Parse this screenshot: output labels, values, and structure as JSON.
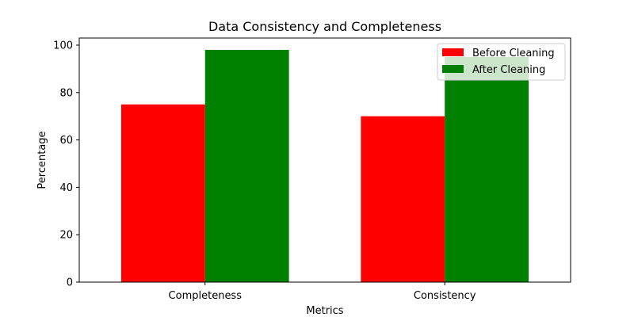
{
  "chart_data": {
    "type": "bar",
    "title": "Data Consistency and Completeness",
    "xlabel": "Metrics",
    "ylabel": "Percentage",
    "categories": [
      "Completeness",
      "Consistency"
    ],
    "series": [
      {
        "name": "Before Cleaning",
        "values": [
          75,
          70
        ],
        "color": "#ff0000"
      },
      {
        "name": "After Cleaning",
        "values": [
          98,
          95
        ],
        "color": "#008000"
      }
    ],
    "ylim": [
      0,
      103
    ],
    "yticks": [
      0,
      20,
      40,
      60,
      80,
      100
    ],
    "legend_position": "top-right",
    "grid": false
  }
}
